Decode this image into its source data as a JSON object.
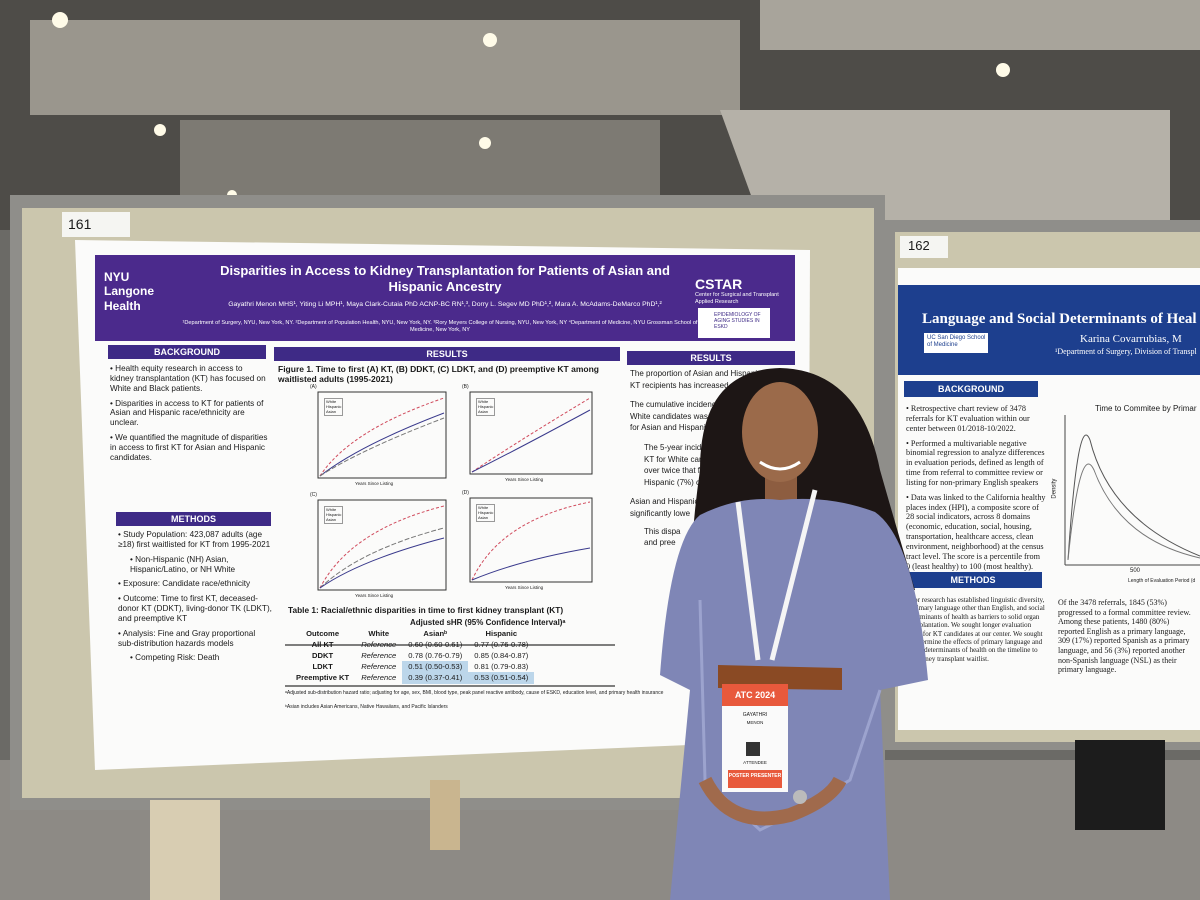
{
  "booth_numbers": [
    "161",
    "162"
  ],
  "left_poster": {
    "logo": "NYU Langone Health",
    "title": "Disparities in Access to Kidney Transplantation for Patients of Asian and Hispanic Ancestry",
    "authors": "Gayathri Menon MHS¹, Yiting Li MPH¹, Maya Clark-Cutaia PhD ACNP-BC RN¹,³, Dorry L. Segev MD PhD¹,², Mara A. McAdams-DeMarco PhD¹,²",
    "affiliations": "¹Department of Surgery, NYU, New York, NY. ²Department of Population Health, NYU, New York, NY. ³Rory Meyers College of Nursing, NYU, New York, NY ⁴Department of Medicine, NYU Grossman School of Medicine, New York, NY",
    "cstar": "CSTAR",
    "cstar_sub": "Center for Surgical and Transplant Applied Research",
    "eskd_logo": "EPIDEMIOLOGY OF AGING STUDIES IN ESKD",
    "background": {
      "heading": "BACKGROUND",
      "bullets": [
        "Health equity research in access to kidney transplantation (KT) has focused on White and Black patients.",
        "Disparities in access to KT for patients of Asian and Hispanic race/ethnicity are unclear.",
        "We quantified the magnitude of disparities in access to first KT for Asian and Hispanic candidates."
      ]
    },
    "methods": {
      "heading": "METHODS",
      "items": [
        "Study Population: 423,087 adults (age ≥18) first waitlisted for KT from 1995-2021",
        "Non-Hispanic (NH) Asian, Hispanic/Latino, or NH White",
        "Exposure: Candidate race/ethnicity",
        "Outcome: Time to first KT, deceased-donor KT (DDKT), living-donor TK (LDKT), and preemptive KT",
        "Analysis: Fine and Gray proportional sub-distribution hazards models",
        "Competing Risk: Death"
      ]
    },
    "figure": {
      "heading": "RESULTS",
      "caption": "Figure 1. Time to first (A) KT, (B) DDKT, (C) LDKT, and (D) preemptive KT among waitlisted adults (1995-2021)",
      "panels": [
        "(A)",
        "(B)",
        "(C)",
        "(D)"
      ],
      "x_label": "Years Since Listing",
      "y_label": "Cumulative Incidence",
      "legend": [
        "White",
        "Hispanic",
        "Asian"
      ]
    },
    "table": {
      "title": "Table 1: Racial/ethnic disparities in time to first kidney transplant (KT)",
      "subheader": "Adjusted sHR (95% Confidence Interval)ᵃ",
      "columns": [
        "Outcome",
        "White",
        "Asianᵇ",
        "Hispanic"
      ],
      "rows": [
        [
          "All KT",
          "Reference",
          "0.60 (0.60-0.61)",
          "0.77 (0.76-0.78)"
        ],
        [
          "DDKT",
          "Reference",
          "0.78 (0.76-0.79)",
          "0.85 (0.84-0.87)"
        ],
        [
          "LDKT",
          "Reference",
          "0.51 (0.50-0.53)",
          "0.81 (0.79-0.83)"
        ],
        [
          "Preemptive KT",
          "Reference",
          "0.39 (0.37-0.41)",
          "0.53 (0.51-0.54)"
        ]
      ],
      "footnotes": [
        "ᵃAdjusted sub-distribution hazard ratio; adjusting for age, sex, BMI, blood type, peak panel reactive antibody, cause of ESKD, education level, and primary health insurance",
        "ᵇAsian includes Asian Americans, Native Hawaiians, and Pacific Islanders"
      ]
    },
    "results": {
      "heading": "RESULTS",
      "lines": [
        "The proportion of Asian and Hispanic",
        "KT recipients has increased over t",
        "The cumulative incidence of K",
        "White candidates was highe",
        "for Asian and Hispanic can",
        "The 5-year incidence",
        "KT for White candid",
        "over twice that for A",
        "Hispanic (7%) can",
        "Asian and Hispanic",
        "significantly lowe",
        "This dispa",
        "and pree"
      ]
    }
  },
  "right_poster": {
    "title": "Language and Social Determinants of Heal",
    "author": "Karina Covarrubias, M",
    "affiliation": "¹Department of Surgery, Division of Transpl",
    "logo": "UC San Diego School of Medicine",
    "background_heading": "BACKGROUND",
    "background_bullets": [
      "Retrospective chart review of 3478 referrals for KT evaluation within our center between 01/2018-10/2022.",
      "Performed a multivariable negative binomial regression to analyze differences in evaluation periods, defined as length of time from referral to committee review or listing for non-primary English speakers",
      "Data was linked to the California healthy places index (HPI), a composite score of 28 social indicators, across 8 domains (economic, education, social, housing, transportation, healthcare access, clean environment, neighborhood) at the census tract level. The score is a percentile from 0 (least healthy) to 100 (most healthy)."
    ],
    "methods_heading": "METHODS",
    "methods_text": "Prior research has established linguistic diversity, a primary language other than English, and social determinants of health as barriers to solid organ transplantation. We sought longer evaluation times for KT candidates at our center. We sought to determine the effects of primary language and social determinants of health on the timeline to the kidney transplant waitlist.",
    "chart_title": "Time to Commitee by Primar",
    "chart_y_label": "Density",
    "chart_x_label": "Length of Evaluation Period (d",
    "chart_x_tick": "500",
    "results_text": "Of the 3478 referrals, 1845 (53%) progressed to a formal committee review. Among these patients, 1480 (80%) reported English as a primary language, 309 (17%) reported Spanish as a primary language, and 56 (3%) reported another non-Spanish language (NSL) as their primary language."
  },
  "badge": {
    "event": "ATC 2024",
    "first_name": "GAYATHRI",
    "last_name": "MENON",
    "role": "ATTENDEE",
    "ribbon": "POSTER PRESENTER"
  }
}
